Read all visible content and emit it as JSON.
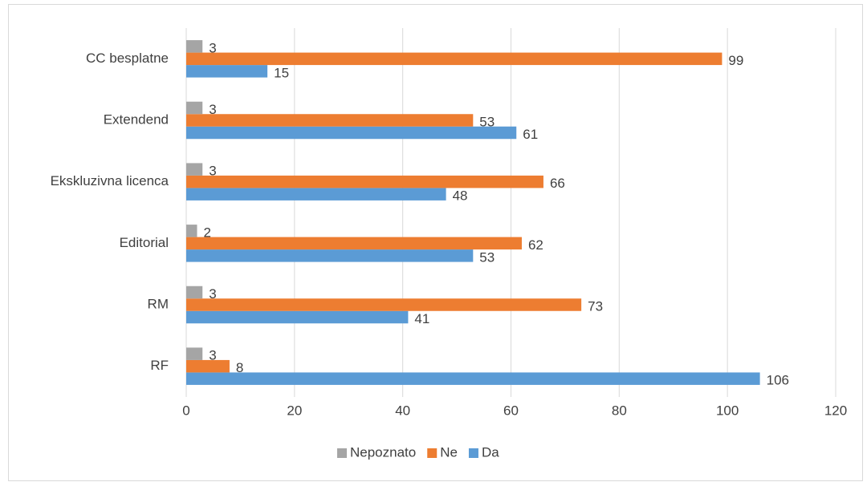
{
  "chart_data": {
    "type": "bar",
    "orientation": "horizontal",
    "categories": [
      "RF",
      "RM",
      "Editorial",
      "Ekskluzivna licenca",
      "Extendend",
      "CC besplatne"
    ],
    "series": [
      {
        "name": "Da",
        "color": "#5b9bd5",
        "values": [
          106,
          41,
          53,
          48,
          61,
          15
        ]
      },
      {
        "name": "Ne",
        "color": "#ed7d31",
        "values": [
          8,
          73,
          62,
          66,
          53,
          99
        ]
      },
      {
        "name": "Nepoznato",
        "color": "#a5a5a5",
        "values": [
          3,
          3,
          2,
          3,
          3,
          3
        ]
      }
    ],
    "xlim": [
      0,
      120
    ],
    "xticks": [
      0,
      20,
      40,
      60,
      80,
      100,
      120
    ],
    "grid": true,
    "legend": "bottom",
    "data_labels": true
  }
}
